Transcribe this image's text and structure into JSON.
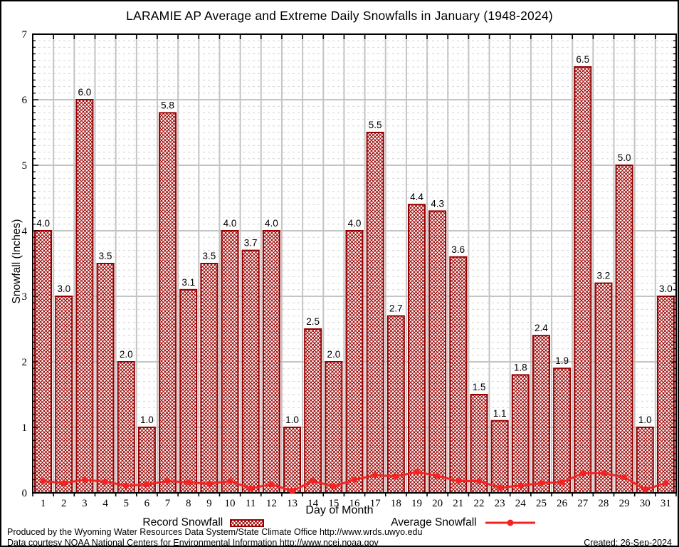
{
  "title": "LARAMIE AP Average and Extreme Daily Snowfalls in January (1948-2024)",
  "chart_data": {
    "type": "bar",
    "title": "LARAMIE AP Average and Extreme Daily Snowfalls in January (1948-2024)",
    "xlabel": "Day of Month",
    "ylabel": "Snowfall (Inches)",
    "ylim": [
      0,
      7
    ],
    "yticks": [
      0,
      1,
      2,
      3,
      4,
      5,
      6,
      7
    ],
    "minor_grid_step": 0.1,
    "grid": "horizontal major solid, minor dashed; vertical solid at day boundaries",
    "legend_position": "bottom",
    "bar_labels_shown": true,
    "categories": [
      1,
      2,
      3,
      4,
      5,
      6,
      7,
      8,
      9,
      10,
      11,
      12,
      13,
      14,
      15,
      16,
      17,
      18,
      19,
      20,
      21,
      22,
      23,
      24,
      25,
      26,
      27,
      28,
      29,
      30,
      31
    ],
    "series": [
      {
        "name": "Record Snowfall",
        "type": "bar",
        "values": [
          4.0,
          3.0,
          6.0,
          3.5,
          2.0,
          1.0,
          5.8,
          3.1,
          3.5,
          4.0,
          3.7,
          4.0,
          1.0,
          2.5,
          2.0,
          4.0,
          5.5,
          2.7,
          4.4,
          4.3,
          3.6,
          1.5,
          1.1,
          1.8,
          2.4,
          1.9,
          6.5,
          3.2,
          5.0,
          1.0,
          3.0
        ]
      },
      {
        "name": "Average Snowfall",
        "type": "line",
        "values": [
          0.18,
          0.15,
          0.2,
          0.17,
          0.11,
          0.13,
          0.18,
          0.16,
          0.14,
          0.18,
          0.07,
          0.13,
          0.03,
          0.18,
          0.1,
          0.2,
          0.27,
          0.25,
          0.32,
          0.26,
          0.18,
          0.18,
          0.08,
          0.11,
          0.15,
          0.16,
          0.3,
          0.3,
          0.24,
          0.05,
          0.15
        ]
      }
    ]
  },
  "legend": {
    "record_label": "Record Snowfall",
    "average_label": "Average Snowfall"
  },
  "footer": {
    "line1": "Produced by the Wyoming Water Resources Data System/State Climate Office http://www.wrds.uwyo.edu",
    "line2": "Data courtesy NOAA National Centers for Environmental Information http://www.ncei.noaa.gov",
    "created": "Created: 26-Sep-2024"
  },
  "colors": {
    "bar_border": "#980000",
    "bar_hatch": "#980000",
    "line": "#f52222",
    "grid_major": "#c4c4c4",
    "grid_minor": "#d2d2d2",
    "axis": "#000000",
    "text": "#000000"
  }
}
